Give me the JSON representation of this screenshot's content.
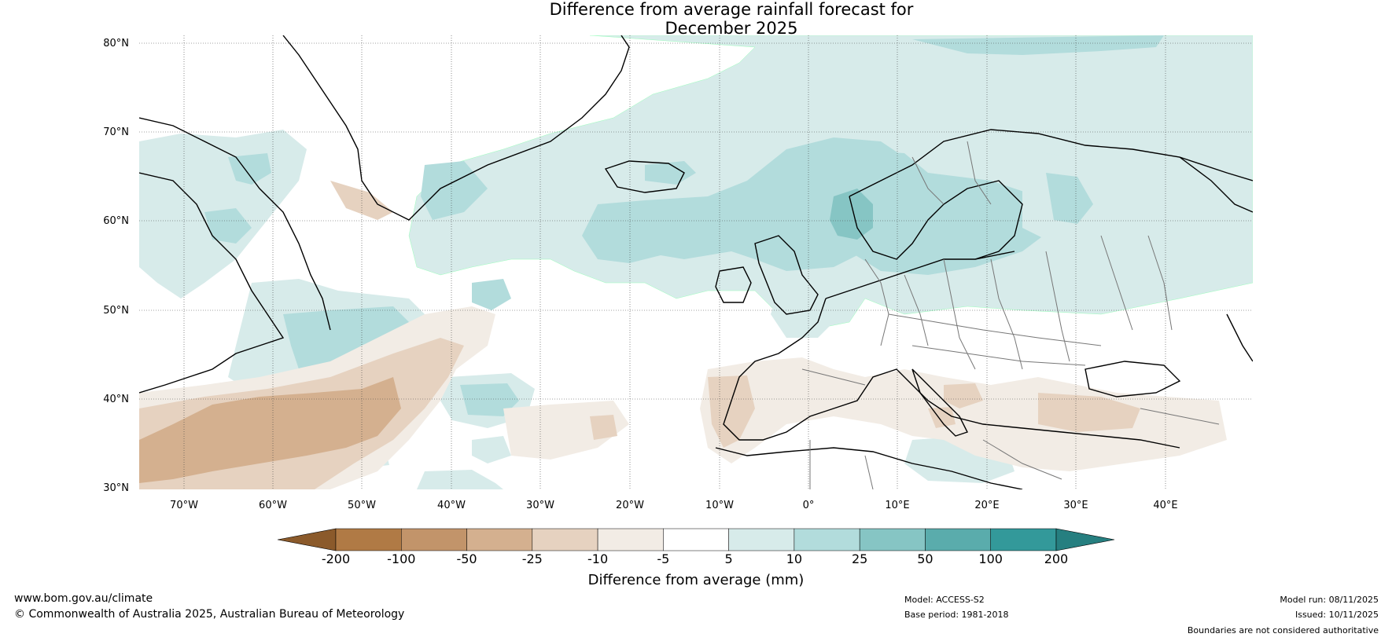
{
  "title_line1": "Difference from average rainfall forecast for",
  "title_line2": "December 2025",
  "lat_labels": [
    "80°N",
    "70°N",
    "60°N",
    "50°N",
    "40°N",
    "30°N"
  ],
  "lon_labels": [
    "70°W",
    "60°W",
    "50°W",
    "40°W",
    "30°W",
    "20°W",
    "10°W",
    "0°",
    "10°E",
    "20°E",
    "30°E",
    "40°E"
  ],
  "colorbar": {
    "ticks": [
      "-200",
      "-100",
      "-50",
      "-25",
      "-10",
      "-5",
      "5",
      "10",
      "25",
      "50",
      "100",
      "200"
    ],
    "colors": [
      "#8b5a2b",
      "#b07a45",
      "#c2946a",
      "#d4b08f",
      "#e6d2c0",
      "#f2ece5",
      "#ffffff",
      "#d7ebea",
      "#b2dcdc",
      "#86c5c4",
      "#5aacac",
      "#33999a",
      "#267f80"
    ],
    "label": "Difference from average (mm)"
  },
  "footer": {
    "website": "www.bom.gov.au/climate",
    "copyright": "© Commonwealth of Australia 2025, Australian Bureau of Meteorology",
    "model": "Model: ACCESS-S2",
    "base_period": "Base period: 1981-2018",
    "model_run": "Model run: 08/11/2025",
    "issued": "Issued: 10/11/2025",
    "disclaimer": "Boundaries are not considered authoritative"
  }
}
